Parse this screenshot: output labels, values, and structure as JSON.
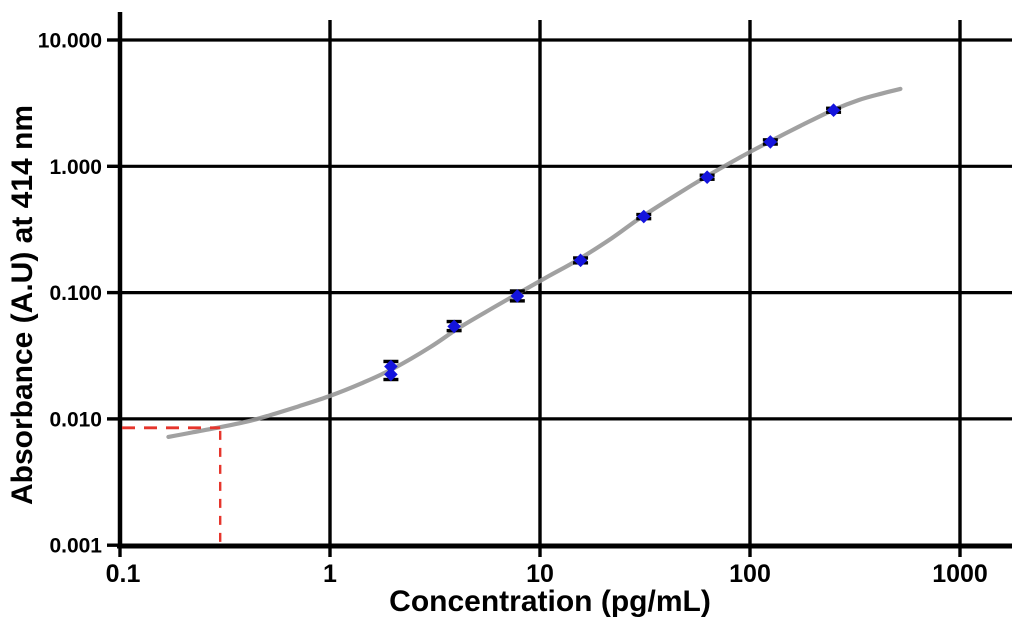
{
  "chart_data": {
    "type": "scatter",
    "title": "",
    "xlabel": "Concentration (pg/mL)",
    "ylabel": "Absorbance (A.U) at 414 nm",
    "x_scale": "log",
    "y_scale": "log",
    "xlim": [
      0.1,
      1000
    ],
    "ylim": [
      0.001,
      10
    ],
    "grid": true,
    "legend": "none",
    "x_ticks": [
      "0.1",
      "1",
      "10",
      "100",
      "1000"
    ],
    "x_tick_values": [
      0.1,
      1,
      10,
      100,
      1000
    ],
    "y_ticks": [
      "10.000",
      "1.000",
      "0.100",
      "0.010",
      "0.001"
    ],
    "y_tick_values": [
      10,
      1,
      0.1,
      0.01,
      0.001
    ],
    "colors": {
      "marker": "#1414dd",
      "error_bar": "#000000",
      "fit_curve": "#979797",
      "grid_line": "#000000",
      "annotation": "#e6352c"
    },
    "series": [
      {
        "name": "standards",
        "marker": "diamond",
        "points": [
          {
            "x": 1.95,
            "y": 0.024,
            "y_lo": 0.0205,
            "y_hi": 0.0285,
            "replicates": [
              0.026,
              0.0225
            ]
          },
          {
            "x": 3.9,
            "y": 0.054,
            "y_lo": 0.05,
            "y_hi": 0.059
          },
          {
            "x": 7.8,
            "y": 0.094,
            "y_lo": 0.086,
            "y_hi": 0.103
          },
          {
            "x": 15.6,
            "y": 0.18,
            "y_lo": 0.172,
            "y_hi": 0.188
          },
          {
            "x": 31.2,
            "y": 0.4,
            "y_lo": 0.385,
            "y_hi": 0.415
          },
          {
            "x": 62.5,
            "y": 0.82,
            "y_lo": 0.79,
            "y_hi": 0.85
          },
          {
            "x": 125,
            "y": 1.56,
            "y_lo": 1.5,
            "y_hi": 1.62
          },
          {
            "x": 250,
            "y": 2.78,
            "y_lo": 2.68,
            "y_hi": 2.88
          }
        ]
      }
    ],
    "fit_curve": {
      "name": "sigmoidal-fit",
      "points": [
        [
          0.17,
          0.0072
        ],
        [
          0.22,
          0.0078
        ],
        [
          0.3,
          0.0086
        ],
        [
          0.4,
          0.0095
        ],
        [
          0.5,
          0.0105
        ],
        [
          0.7,
          0.0125
        ],
        [
          1,
          0.0152
        ],
        [
          1.4,
          0.019
        ],
        [
          2,
          0.025
        ],
        [
          3,
          0.037
        ],
        [
          4,
          0.051
        ],
        [
          5.5,
          0.07
        ],
        [
          8,
          0.1
        ],
        [
          11,
          0.135
        ],
        [
          15,
          0.18
        ],
        [
          22,
          0.27
        ],
        [
          30,
          0.39
        ],
        [
          45,
          0.6
        ],
        [
          62,
          0.83
        ],
        [
          90,
          1.18
        ],
        [
          125,
          1.58
        ],
        [
          180,
          2.15
        ],
        [
          250,
          2.8
        ],
        [
          330,
          3.35
        ],
        [
          420,
          3.75
        ],
        [
          520,
          4.1
        ]
      ]
    },
    "annotation": {
      "name": "detection-limit-guides",
      "style": "dashed",
      "x": 0.3,
      "y": 0.0085
    }
  }
}
